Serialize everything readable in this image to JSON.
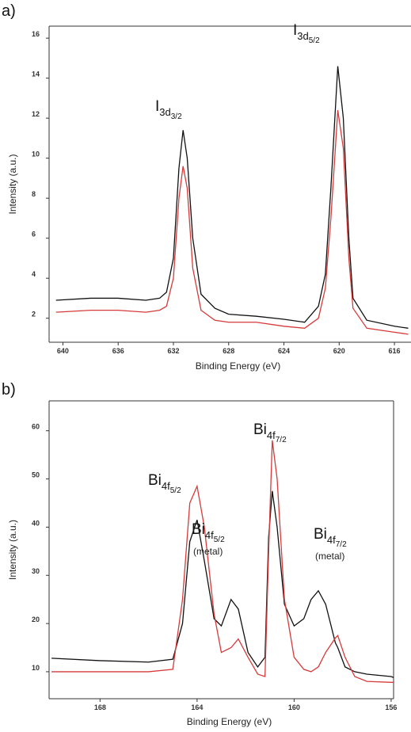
{
  "chart_data": [
    {
      "type": "line",
      "panel_label": "a)",
      "x_label": "Binding Energy (eV)",
      "y_label": "Intensity (a.u.)",
      "xlim": [
        641,
        614.8
      ],
      "xticks": [
        640,
        636,
        632,
        628,
        624,
        620,
        616
      ],
      "ylim": [
        0.8,
        16.6
      ],
      "yticks": [
        2,
        4,
        6,
        8,
        10,
        12,
        14,
        16
      ],
      "x": [
        640.5,
        638,
        636,
        634,
        633,
        632.5,
        632,
        631.6,
        631.3,
        631,
        630.6,
        630,
        629,
        628,
        626,
        624,
        622.5,
        621.5,
        621,
        620.6,
        620.1,
        619.7,
        619.3,
        619,
        618,
        616,
        615
      ],
      "series": [
        {
          "color": "#111111",
          "values": [
            2.9,
            3.0,
            3.0,
            2.9,
            3.0,
            3.3,
            5,
            9.5,
            11.4,
            10,
            6,
            3.2,
            2.5,
            2.2,
            2.1,
            1.95,
            1.8,
            2.6,
            4.2,
            8.5,
            14.6,
            12,
            6,
            3,
            1.9,
            1.6,
            1.5
          ]
        },
        {
          "color": "#d63a3a",
          "values": [
            2.3,
            2.4,
            2.4,
            2.3,
            2.4,
            2.6,
            4,
            8,
            9.6,
            8.5,
            4.5,
            2.4,
            1.9,
            1.8,
            1.8,
            1.6,
            1.5,
            2,
            3.5,
            7,
            12.4,
            10.5,
            5,
            2.5,
            1.5,
            1.3,
            1.2
          ]
        }
      ],
      "annotations": [
        {
          "text": "I",
          "sub": "3d",
          "subsub": "3/2"
        },
        {
          "text": "I",
          "sub": "3d",
          "subsub": "5/2"
        }
      ]
    },
    {
      "type": "line",
      "panel_label": "b)",
      "x_label": "Binding Energy (eV)",
      "y_label": "Intensity (a.u.)",
      "xlim": [
        170.1,
        155.9
      ],
      "xticks": [
        168,
        164,
        160,
        156
      ],
      "ylim": [
        4.4,
        66.2
      ],
      "yticks": [
        10,
        20,
        30,
        40,
        50,
        60
      ],
      "x": [
        170,
        168,
        166,
        165,
        164.6,
        164.3,
        164.0,
        163.7,
        163.3,
        163.0,
        162.6,
        162.3,
        161.9,
        161.5,
        161.2,
        161.05,
        160.9,
        160.7,
        160.4,
        160.0,
        159.6,
        159.3,
        159.0,
        158.7,
        158.3,
        158.2,
        157.9,
        157.5,
        157,
        156,
        155.9
      ],
      "series": [
        {
          "color": "#111111",
          "values": [
            12.8,
            12.3,
            12.0,
            12.6,
            20,
            37,
            41.5,
            33,
            21,
            19.5,
            25,
            23,
            14,
            11,
            13,
            38,
            47.5,
            40,
            24,
            19.5,
            21,
            25,
            26.8,
            24,
            16,
            15,
            11,
            10,
            9.5,
            9,
            8.8
          ]
        },
        {
          "color": "#d63a3a",
          "values": [
            10,
            10,
            10,
            10.5,
            25,
            45,
            48.5,
            40,
            22,
            14,
            15,
            16.8,
            13,
            9.5,
            9,
            35,
            58,
            50,
            25,
            13,
            10.5,
            10,
            11,
            14,
            17,
            17.5,
            13,
            9,
            8,
            7.8,
            7.8
          ]
        }
      ],
      "annotations": [
        {
          "text": "Bi",
          "sub": "4f",
          "subsub": "5/2"
        },
        {
          "text": "Bi",
          "sub": "4f",
          "subsub": "5/2",
          "note": "(metal)"
        },
        {
          "text": "Bi",
          "sub": "4f",
          "subsub": "7/2"
        },
        {
          "text": "Bi",
          "sub": "4f",
          "subsub": "7/2",
          "note": "(metal)"
        }
      ]
    }
  ]
}
